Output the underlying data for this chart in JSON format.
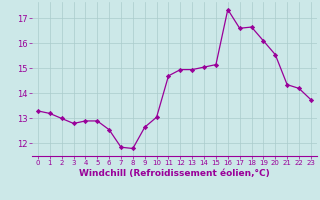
{
  "x": [
    0,
    1,
    2,
    3,
    4,
    5,
    6,
    7,
    8,
    9,
    10,
    11,
    12,
    13,
    14,
    15,
    16,
    17,
    18,
    19,
    20,
    21,
    22,
    23
  ],
  "y": [
    13.3,
    13.2,
    13.0,
    12.8,
    12.9,
    12.9,
    12.55,
    11.85,
    11.8,
    12.65,
    13.05,
    14.7,
    14.95,
    14.95,
    15.05,
    15.15,
    17.35,
    16.6,
    16.65,
    16.1,
    15.55,
    14.35,
    14.2,
    13.75
  ],
  "line_color": "#990099",
  "marker": "D",
  "markersize": 2.2,
  "linewidth": 0.9,
  "xlabel": "Windchill (Refroidissement éolien,°C)",
  "xlabel_fontsize": 6.5,
  "ylabel_ticks": [
    12,
    13,
    14,
    15,
    16,
    17
  ],
  "xtick_labels": [
    "0",
    "1",
    "2",
    "3",
    "4",
    "5",
    "6",
    "7",
    "8",
    "9",
    "10",
    "11",
    "12",
    "13",
    "14",
    "15",
    "16",
    "17",
    "18",
    "19",
    "20",
    "21",
    "22",
    "23"
  ],
  "ylim": [
    11.5,
    17.65
  ],
  "xlim": [
    -0.5,
    23.5
  ],
  "bg_color": "#cce8e8",
  "grid_color": "#aacccc",
  "tick_color": "#990099",
  "label_color": "#990099"
}
